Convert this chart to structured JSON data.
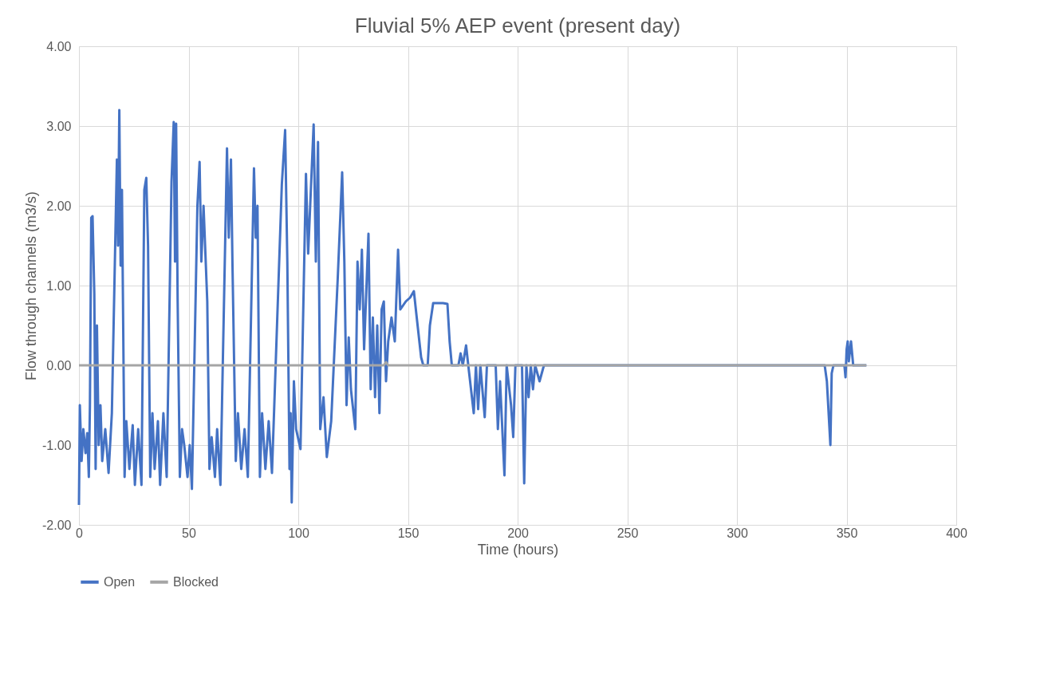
{
  "chart_data": {
    "type": "line",
    "title": "Fluvial 5% AEP event (present day)",
    "xlabel": "Time (hours)",
    "ylabel": "Flow through channels (m3/s)",
    "xlim": [
      0,
      400
    ],
    "xticks": [
      0,
      50,
      100,
      150,
      200,
      250,
      300,
      350,
      400
    ],
    "ylim": [
      -2,
      4
    ],
    "yticks": [
      {
        "value": -2,
        "label": "-2.00"
      },
      {
        "value": -1,
        "label": "-1.00"
      },
      {
        "value": 0,
        "label": "0.00"
      },
      {
        "value": 1,
        "label": "1.00"
      },
      {
        "value": 2,
        "label": "2.00"
      },
      {
        "value": 3,
        "label": "3.00"
      },
      {
        "value": 4,
        "label": "4.00"
      }
    ],
    "grid": true,
    "legend": "bottom",
    "marker": "none",
    "line_style": "solid",
    "series": [
      {
        "name": "Open",
        "color": "#4472c4",
        "x": [
          0,
          0.4,
          1.2,
          2,
          3,
          3.8,
          4.5,
          5,
          5.6,
          6.2,
          7,
          7.6,
          8.2,
          9,
          9.8,
          10.6,
          12,
          13.5,
          15,
          17.3,
          17.8,
          18.4,
          19,
          19.6,
          20.8,
          21.6,
          23,
          24.5,
          25.5,
          27,
          28.5,
          29.8,
          30.7,
          31.5,
          32.5,
          33.5,
          34.5,
          36,
          37,
          38.5,
          40,
          42.2,
          43.2,
          43.8,
          44.3,
          45,
          46,
          47,
          48,
          49.5,
          50.5,
          51.5,
          54,
          55,
          55.8,
          56.8,
          58.5,
          59.5,
          60.5,
          62,
          63,
          64.5,
          67.5,
          68.3,
          69.3,
          70,
          71.5,
          72.5,
          74,
          75.5,
          77,
          79.8,
          80.6,
          81.4,
          82.5,
          83.5,
          85,
          86.5,
          88,
          92.5,
          94,
          95,
          96,
          96.5,
          97,
          98,
          99,
          101,
          103.5,
          104.5,
          107,
          108,
          109,
          110,
          111.5,
          113,
          115,
          118,
          120,
          121,
          122,
          123,
          124,
          126,
          127,
          128,
          129,
          130,
          132,
          133,
          134,
          135,
          136,
          137,
          138,
          139,
          140,
          141,
          142.5,
          144,
          145.5,
          146.5,
          149,
          151,
          152.7,
          154,
          156,
          157,
          159,
          160,
          161.5,
          166,
          168,
          169,
          170,
          173,
          174,
          175,
          176.5,
          177.5,
          180,
          181,
          182,
          183,
          185,
          186,
          190,
          191,
          192,
          194,
          195,
          197,
          198,
          199,
          202,
          203,
          204,
          205,
          206,
          207,
          208,
          210,
          212,
          340,
          341,
          342.6,
          343.2,
          344,
          349,
          349.5,
          350,
          350.5,
          351,
          352,
          353,
          359
        ],
        "values": [
          -1.75,
          -0.5,
          -1.2,
          -0.8,
          -1.1,
          -0.85,
          -1.4,
          -0.5,
          1.85,
          1.87,
          0.9,
          -1.3,
          0.5,
          -1.0,
          -0.5,
          -1.2,
          -0.8,
          -1.35,
          -0.6,
          2.58,
          1.5,
          3.2,
          1.25,
          2.2,
          -1.4,
          -0.7,
          -1.3,
          -0.75,
          -1.5,
          -0.8,
          -1.5,
          2.2,
          2.35,
          1.5,
          -1.4,
          -0.6,
          -1.3,
          -0.7,
          -1.5,
          -0.6,
          -1.4,
          2.3,
          3.05,
          1.3,
          3.03,
          0.8,
          -1.4,
          -0.8,
          -1.0,
          -1.4,
          -1.0,
          -1.55,
          2.0,
          2.55,
          1.3,
          2.0,
          0.8,
          -1.3,
          -0.9,
          -1.4,
          -0.8,
          -1.5,
          2.72,
          1.6,
          2.58,
          1.25,
          -1.2,
          -0.6,
          -1.3,
          -0.8,
          -1.4,
          2.47,
          1.6,
          2.0,
          -1.4,
          -0.6,
          -1.3,
          -0.7,
          -1.35,
          2.27,
          2.95,
          1.3,
          -1.3,
          -0.6,
          -1.72,
          -0.2,
          -0.8,
          -1.05,
          2.4,
          1.4,
          3.02,
          1.3,
          2.8,
          -0.8,
          -0.4,
          -1.15,
          -0.7,
          1.1,
          2.42,
          1.3,
          -0.5,
          0.35,
          -0.3,
          -0.8,
          1.3,
          0.7,
          1.45,
          0.2,
          1.65,
          -0.3,
          0.6,
          -0.4,
          0.5,
          -0.6,
          0.7,
          0.8,
          -0.2,
          0.3,
          0.6,
          0.3,
          1.45,
          0.7,
          0.8,
          0.85,
          0.93,
          0.6,
          0.1,
          0.0,
          0.0,
          0.5,
          0.78,
          0.78,
          0.77,
          0.3,
          0.0,
          0.0,
          0.15,
          0.0,
          0.25,
          0.0,
          -0.6,
          0.0,
          -0.55,
          0.0,
          -0.65,
          0.0,
          0.0,
          -0.8,
          -0.2,
          -1.38,
          0.0,
          -0.5,
          -0.9,
          0.0,
          0.0,
          -1.48,
          0.0,
          -0.4,
          0.0,
          -0.3,
          0.0,
          -0.2,
          0.0,
          0.0,
          -0.2,
          -1.0,
          -0.1,
          0.0,
          0.0,
          -0.15,
          0.2,
          0.3,
          0.05,
          0.3,
          0.0,
          0.0
        ]
      },
      {
        "name": "Blocked",
        "color": "#a5a5a5",
        "x": [
          0,
          139,
          140,
          141,
          359
        ],
        "values": [
          0,
          0,
          0.04,
          0,
          0
        ]
      }
    ]
  }
}
